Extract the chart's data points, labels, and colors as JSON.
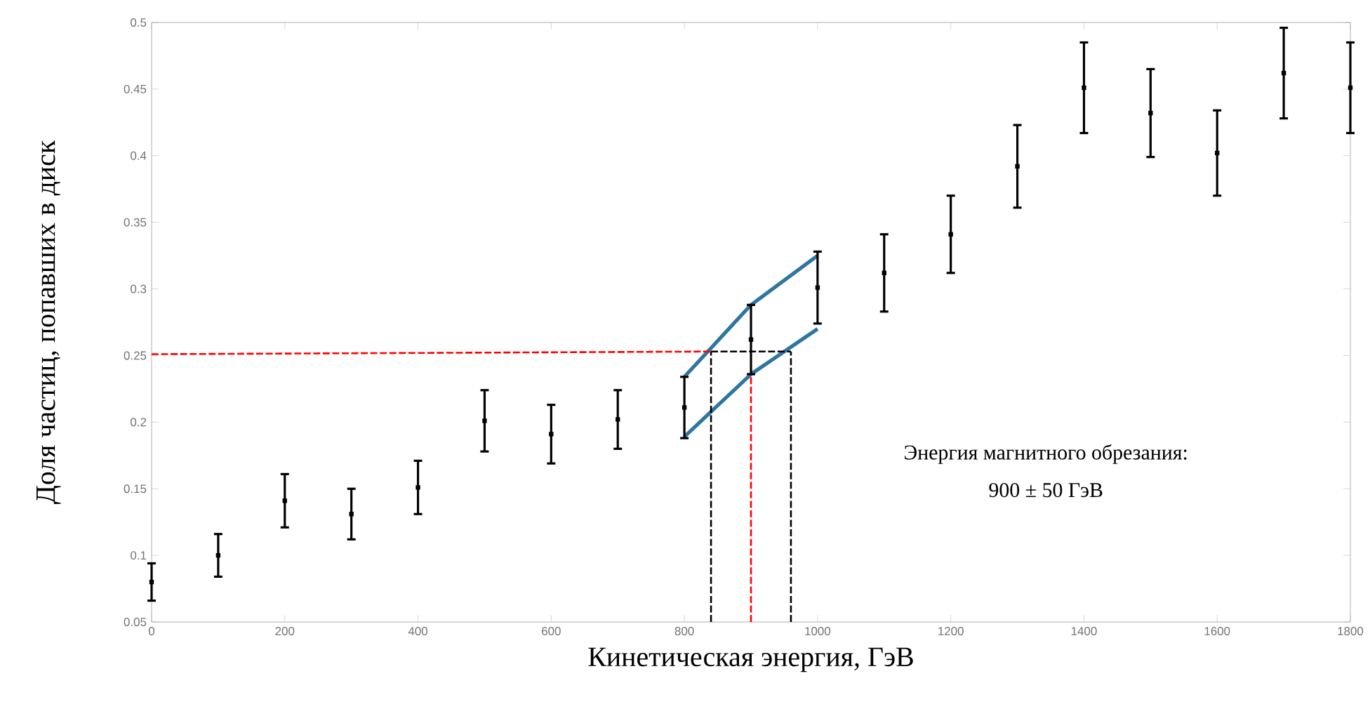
{
  "chart_data": {
    "type": "scatter",
    "xlabel": "Кинетическая энергия, ГэВ",
    "ylabel": "Доля частиц, попавших в диск",
    "annotations": [
      "Энергия магнитного обрезания:",
      "900 ± 50 ГэВ"
    ],
    "xlim": [
      0,
      1800
    ],
    "xticks": [
      0,
      200,
      400,
      600,
      800,
      1000,
      1200,
      1400,
      1600,
      1800
    ],
    "ylim": [
      0.05,
      0.5
    ],
    "yticks": [
      0.05,
      0.1,
      0.15,
      0.2,
      0.25,
      0.3,
      0.35,
      0.4,
      0.45,
      0.5
    ],
    "marker": "square",
    "series": [
      {
        "color": "#000000",
        "x": [
          0,
          100,
          200,
          300,
          400,
          500,
          600,
          700,
          800,
          900,
          1000,
          1100,
          1200,
          1300,
          1400,
          1500,
          1600,
          1700,
          1800
        ],
        "values": [
          0.08,
          0.1,
          0.141,
          0.131,
          0.151,
          0.201,
          0.191,
          0.202,
          0.211,
          0.262,
          0.301,
          0.312,
          0.341,
          0.392,
          0.451,
          0.432,
          0.402,
          0.462,
          0.451
        ],
        "errors": [
          0.014,
          0.016,
          0.02,
          0.019,
          0.02,
          0.023,
          0.022,
          0.022,
          0.023,
          0.026,
          0.027,
          0.029,
          0.029,
          0.031,
          0.034,
          0.033,
          0.032,
          0.034,
          0.034
        ]
      },
      {
        "type": "line",
        "marker": "none",
        "color": "#2e75a0",
        "line_style": "solid",
        "x": [
          800,
          900,
          1000
        ],
        "values": [
          0.234,
          0.288,
          0.325
        ]
      },
      {
        "type": "line",
        "marker": "none",
        "color": "#2e75a0",
        "line_style": "solid",
        "x": [
          800,
          900,
          1000
        ],
        "values": [
          0.189,
          0.236,
          0.27
        ]
      },
      {
        "type": "line",
        "marker": "none",
        "color": "#ff0000",
        "line_style": "dashed",
        "x": [
          0,
          840
        ],
        "values": [
          0.251,
          0.253
        ]
      },
      {
        "type": "line",
        "marker": "none",
        "color": "#000000",
        "line_style": "dashed",
        "x": [
          840,
          960
        ],
        "values": [
          0.253,
          0.253
        ]
      },
      {
        "type": "line",
        "marker": "none",
        "color": "#ff0000",
        "line_style": "dashed",
        "x": [
          900,
          900
        ],
        "values": [
          0.05,
          0.236
        ]
      },
      {
        "type": "line",
        "marker": "none",
        "color": "#000000",
        "line_style": "dashed",
        "x": [
          840,
          840
        ],
        "values": [
          0.05,
          0.253
        ]
      },
      {
        "type": "line",
        "marker": "none",
        "color": "#000000",
        "line_style": "dashed",
        "x": [
          960,
          960
        ],
        "values": [
          0.05,
          0.253
        ]
      }
    ]
  }
}
